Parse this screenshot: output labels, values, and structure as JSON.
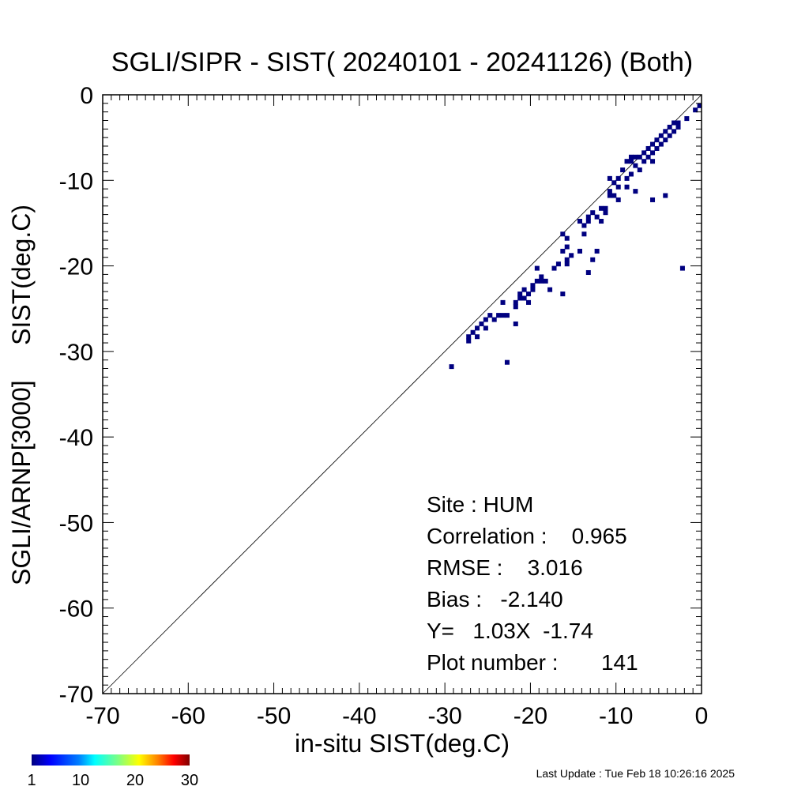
{
  "chart_data": {
    "type": "heatmap",
    "title": "SGLI/SIPR - SIST( 20240101 - 20241126) (Both)",
    "xlabel": "in-situ SIST(deg.C)",
    "ylabel": "SGLI/ARNP[3000]     SIST(deg.C)",
    "xlim": [
      -70,
      0
    ],
    "ylim": [
      -70,
      0
    ],
    "x_ticks": [
      -70,
      -60,
      -50,
      -40,
      -30,
      -20,
      -10,
      0
    ],
    "y_ticks": [
      0,
      -10,
      -20,
      -30,
      -40,
      -50,
      -60,
      -70
    ],
    "x_tick_labels": [
      "-70",
      "-60",
      "-50",
      "-40",
      "-30",
      "-20",
      "-10",
      "0"
    ],
    "y_tick_labels": [
      "0",
      "-10",
      "-20",
      "-30",
      "-40",
      "-50",
      "-60",
      "-70"
    ],
    "bin_size": 0.5,
    "identity_line": true,
    "stats": {
      "site": "Site : HUM",
      "correlation": "Correlation :    0.965",
      "rmse": "RMSE :    3.016",
      "bias": "Bias :   -2.140",
      "regression": "Y=   1.03X  -1.74",
      "plot_number": "Plot number :       141"
    },
    "colorbar": {
      "min": 1,
      "max": 30,
      "tick_labels": [
        "1",
        "10",
        "20",
        "30"
      ],
      "tick_values": [
        1,
        10,
        20,
        30
      ],
      "colors": [
        "#000080",
        "#0000ff",
        "#0080ff",
        "#00ffff",
        "#80ff80",
        "#ffff00",
        "#ff8000",
        "#ff0000",
        "#800000"
      ]
    },
    "points": [
      [
        -29.5,
        -32.0
      ],
      [
        -27.5,
        -29.0
      ],
      [
        -27.5,
        -28.5
      ],
      [
        -27.0,
        -28.0
      ],
      [
        -26.5,
        -28.5
      ],
      [
        -26.5,
        -27.5
      ],
      [
        -26.0,
        -27.0
      ],
      [
        -25.5,
        -27.5
      ],
      [
        -25.5,
        -26.5
      ],
      [
        -25.0,
        -26.0
      ],
      [
        -24.5,
        -26.5
      ],
      [
        -24.0,
        -26.0
      ],
      [
        -23.5,
        -26.0
      ],
      [
        -23.0,
        -26.0
      ],
      [
        -23.5,
        -24.5
      ],
      [
        -23.0,
        -31.5
      ],
      [
        -22.0,
        -27.0
      ],
      [
        -22.0,
        -25.0
      ],
      [
        -22.0,
        -24.5
      ],
      [
        -21.5,
        -24.0
      ],
      [
        -21.5,
        -23.5
      ],
      [
        -21.0,
        -24.0
      ],
      [
        -21.0,
        -23.0
      ],
      [
        -20.5,
        -23.5
      ],
      [
        -20.5,
        -24.5
      ],
      [
        -20.0,
        -23.0
      ],
      [
        -20.0,
        -22.5
      ],
      [
        -19.5,
        -22.0
      ],
      [
        -19.0,
        -22.0
      ],
      [
        -19.0,
        -21.5
      ],
      [
        -19.5,
        -20.5
      ],
      [
        -18.5,
        -22.0
      ],
      [
        -18.0,
        -23.0
      ],
      [
        -17.5,
        -20.5
      ],
      [
        -17.0,
        -20.0
      ],
      [
        -16.5,
        -23.5
      ],
      [
        -16.5,
        -18.5
      ],
      [
        -16.5,
        -16.5
      ],
      [
        -16.0,
        -17.0
      ],
      [
        -16.0,
        -18.0
      ],
      [
        -16.0,
        -19.5
      ],
      [
        -16.0,
        -20.0
      ],
      [
        -15.5,
        -19.0
      ],
      [
        -14.5,
        -15.0
      ],
      [
        -14.5,
        -18.5
      ],
      [
        -14.0,
        -15.5
      ],
      [
        -14.0,
        -16.5
      ],
      [
        -13.5,
        -15.0
      ],
      [
        -13.5,
        -14.5
      ],
      [
        -13.5,
        -21.0
      ],
      [
        -13.0,
        -14.0
      ],
      [
        -13.0,
        -19.5
      ],
      [
        -12.5,
        -14.5
      ],
      [
        -12.5,
        -18.5
      ],
      [
        -12.0,
        -13.5
      ],
      [
        -12.0,
        -15.0
      ],
      [
        -11.5,
        -14.0
      ],
      [
        -11.5,
        -13.5
      ],
      [
        -11.0,
        -12.0
      ],
      [
        -11.0,
        -11.5
      ],
      [
        -11.0,
        -10.0
      ],
      [
        -10.5,
        -10.5
      ],
      [
        -10.5,
        -12.0
      ],
      [
        -10.0,
        -11.0
      ],
      [
        -10.0,
        -12.5
      ],
      [
        -10.0,
        -10.0
      ],
      [
        -9.5,
        -9.0
      ],
      [
        -9.0,
        -8.0
      ],
      [
        -9.0,
        -11.0
      ],
      [
        -9.0,
        -10.0
      ],
      [
        -8.5,
        -8.0
      ],
      [
        -8.5,
        -9.5
      ],
      [
        -8.5,
        -7.5
      ],
      [
        -8.0,
        -7.5
      ],
      [
        -8.0,
        -8.5
      ],
      [
        -8.0,
        -11.5
      ],
      [
        -7.5,
        -7.5
      ],
      [
        -7.5,
        -9.0
      ],
      [
        -7.0,
        -7.0
      ],
      [
        -7.0,
        -8.0
      ],
      [
        -6.5,
        -6.5
      ],
      [
        -6.5,
        -7.5
      ],
      [
        -6.0,
        -6.0
      ],
      [
        -6.0,
        -7.0
      ],
      [
        -6.0,
        -8.0
      ],
      [
        -6.0,
        -12.5
      ],
      [
        -5.5,
        -5.5
      ],
      [
        -5.5,
        -6.5
      ],
      [
        -5.0,
        -5.0
      ],
      [
        -5.0,
        -6.0
      ],
      [
        -4.5,
        -4.5
      ],
      [
        -4.5,
        -5.5
      ],
      [
        -4.5,
        -12.0
      ],
      [
        -4.0,
        -4.0
      ],
      [
        -4.0,
        -5.0
      ],
      [
        -3.5,
        -3.5
      ],
      [
        -3.5,
        -4.5
      ],
      [
        -3.0,
        -3.5
      ],
      [
        -3.0,
        -4.0
      ],
      [
        -2.5,
        -20.5
      ],
      [
        -2.0,
        -3.0
      ],
      [
        -1.0,
        -2.0
      ],
      [
        -0.5,
        -1.5
      ]
    ],
    "last_update": "Last Update : Tue Feb 18 10:26:16 2025"
  }
}
